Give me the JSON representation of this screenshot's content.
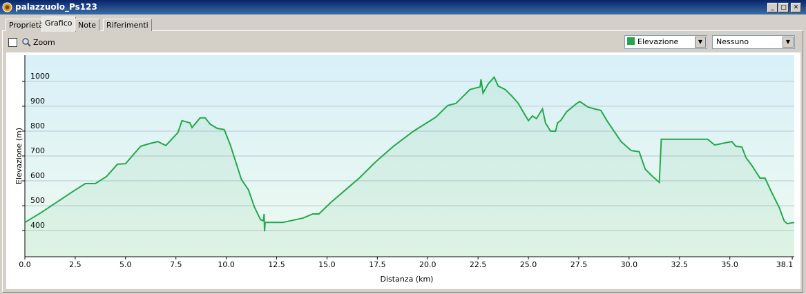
{
  "window": {
    "title": "palazzuolo_Ps123"
  },
  "tabs": [
    "Proprietà",
    "Grafico",
    "Note",
    "Riferimenti"
  ],
  "toolbar": {
    "zoom": "Zoom",
    "secondary": "Nessuno"
  },
  "chart_data": {
    "type": "line",
    "x_label": "Distanza  (km)",
    "y_label": "Elevazione (m)",
    "xlim": [
      0,
      38.2
    ],
    "ylim": [
      295,
      1105
    ],
    "xticks": [
      {
        "value": 0,
        "label": "0.0"
      },
      2.5,
      {
        "value": 5,
        "label": "5.0"
      },
      7.5,
      {
        "value": 10,
        "label": "10.0"
      },
      12.5,
      {
        "value": 15,
        "label": "15.0"
      },
      17.5,
      {
        "value": 20,
        "label": "20.0"
      },
      22.5,
      {
        "value": 25,
        "label": "25.0"
      },
      27.5,
      {
        "value": 30,
        "label": "30.0"
      },
      32.5,
      {
        "value": 35,
        "label": "35.0"
      },
      38.1
    ],
    "yticks": [
      400,
      500,
      600,
      700,
      800,
      900,
      1000
    ],
    "grid": true,
    "series": [
      {
        "name": "Elevazione",
        "color": "#22a84a",
        "x": [
          0,
          0.8,
          2.4,
          3.0,
          3.5,
          4.05,
          4.6,
          5.0,
          5.75,
          6.2,
          6.6,
          7.0,
          7.6,
          7.8,
          8.2,
          8.3,
          8.7,
          8.95,
          9.2,
          9.55,
          9.9,
          10.2,
          10.75,
          11.1,
          11.4,
          11.7,
          11.85,
          11.88,
          11.9,
          11.93,
          12.3,
          12.8,
          13.8,
          14.3,
          14.6,
          15.2,
          16.6,
          17.4,
          18.3,
          19.3,
          20.4,
          21.0,
          21.4,
          22.1,
          22.6,
          22.65,
          22.75,
          23.0,
          23.3,
          23.5,
          23.85,
          24.2,
          24.5,
          24.7,
          25.0,
          25.2,
          25.4,
          25.7,
          25.85,
          26.1,
          26.35,
          26.45,
          26.6,
          26.9,
          27.4,
          27.55,
          27.95,
          28.3,
          28.6,
          28.9,
          29.6,
          30.1,
          30.5,
          30.8,
          31.15,
          31.5,
          31.6,
          32.2,
          33.9,
          34.25,
          34.6,
          35.1,
          35.3,
          35.6,
          35.8,
          36.1,
          36.5,
          36.75,
          37.1,
          37.45,
          37.7,
          37.85,
          38.2
        ],
        "values": [
          433,
          472,
          558,
          589,
          589,
          617,
          667,
          669,
          739,
          750,
          758,
          742,
          794,
          842,
          833,
          814,
          853,
          853,
          828,
          811,
          806,
          744,
          606,
          564,
          494,
          444,
          439,
          467,
          397,
          433,
          433,
          433,
          450,
          467,
          467,
          514,
          611,
          675,
          739,
          800,
          856,
          903,
          911,
          967,
          978,
          1008,
          953,
          989,
          1017,
          981,
          967,
          939,
          911,
          883,
          842,
          861,
          850,
          889,
          833,
          800,
          800,
          833,
          842,
          878,
          911,
          919,
          897,
          889,
          883,
          842,
          758,
          722,
          717,
          647,
          619,
          594,
          767,
          767,
          767,
          744,
          750,
          758,
          739,
          736,
          694,
          661,
          611,
          611,
          550,
          494,
          439,
          428,
          433
        ]
      }
    ]
  }
}
